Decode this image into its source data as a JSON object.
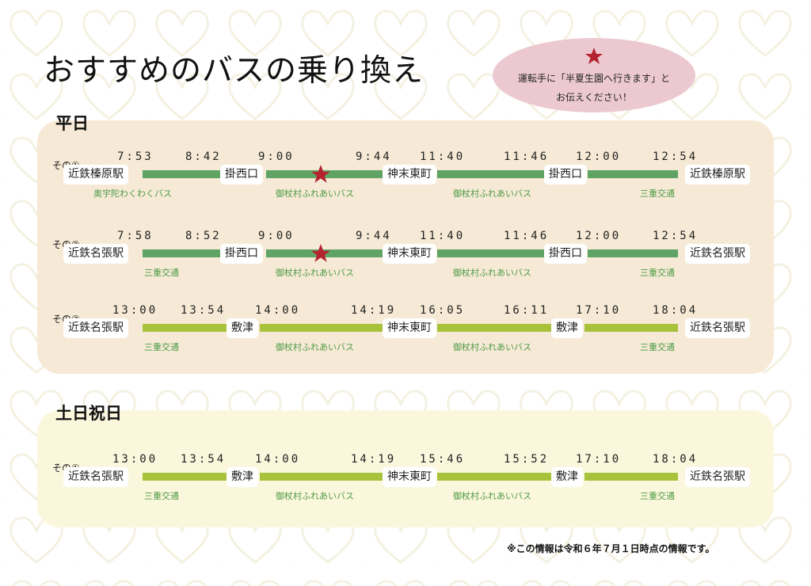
{
  "title": "おすすめのバスの乗り換え",
  "note": {
    "line1": "運転手に「半夏生園へ行きます」と",
    "line2": "お伝えください！",
    "star_color": "#b3242e"
  },
  "sections": {
    "weekday": "平日",
    "holiday": "土日祝日"
  },
  "colors": {
    "line_dark": "#5fa465",
    "line_lime": "#a9c23b",
    "operator_text": "#4d9a45",
    "weekday_panel": "#f6ead6",
    "holiday_panel": "#fbf7dd"
  },
  "routes": {
    "w1": {
      "label": "その①",
      "times": [
        "7:53",
        "8:42",
        "9:00",
        "9:44",
        "11:40",
        "11:46",
        "12:00",
        "12:54"
      ],
      "stations": [
        "近鉄榛原駅",
        "掛西口",
        "神末東町",
        "掛西口",
        "近鉄榛原駅"
      ],
      "operators": [
        "奥宇陀わくわくバス",
        "御杖村ふれあいバス",
        "御杖村ふれあいバス",
        "三重交通"
      ]
    },
    "w2": {
      "label": "その②",
      "times": [
        "7:58",
        "8:52",
        "9:00",
        "9:44",
        "11:40",
        "11:46",
        "12:00",
        "12:54"
      ],
      "stations": [
        "近鉄名張駅",
        "掛西口",
        "神末東町",
        "掛西口",
        "近鉄名張駅"
      ],
      "operators": [
        "三重交通",
        "御杖村ふれあいバス",
        "御杖村ふれあいバス",
        "三重交通"
      ]
    },
    "w3": {
      "label": "その③",
      "times": [
        "13:00",
        "13:54",
        "14:00",
        "14:19",
        "16:05",
        "16:11",
        "17:10",
        "18:04"
      ],
      "stations": [
        "近鉄名張駅",
        "敷津",
        "神末東町",
        "敷津",
        "近鉄名張駅"
      ],
      "operators": [
        "三重交通",
        "御杖村ふれあいバス",
        "御杖村ふれあいバス",
        "三重交通"
      ]
    },
    "h1": {
      "label": "その①",
      "times": [
        "13:00",
        "13:54",
        "14:00",
        "14:19",
        "15:46",
        "15:52",
        "17:10",
        "18:04"
      ],
      "stations": [
        "近鉄名張駅",
        "敷津",
        "神末東町",
        "敷津",
        "近鉄名張駅"
      ],
      "operators": [
        "三重交通",
        "御杖村ふれあいバス",
        "御杖村ふれあいバス",
        "三重交通"
      ]
    }
  },
  "footnote": "※この情報は令和６年７月１日時点の情報です。"
}
